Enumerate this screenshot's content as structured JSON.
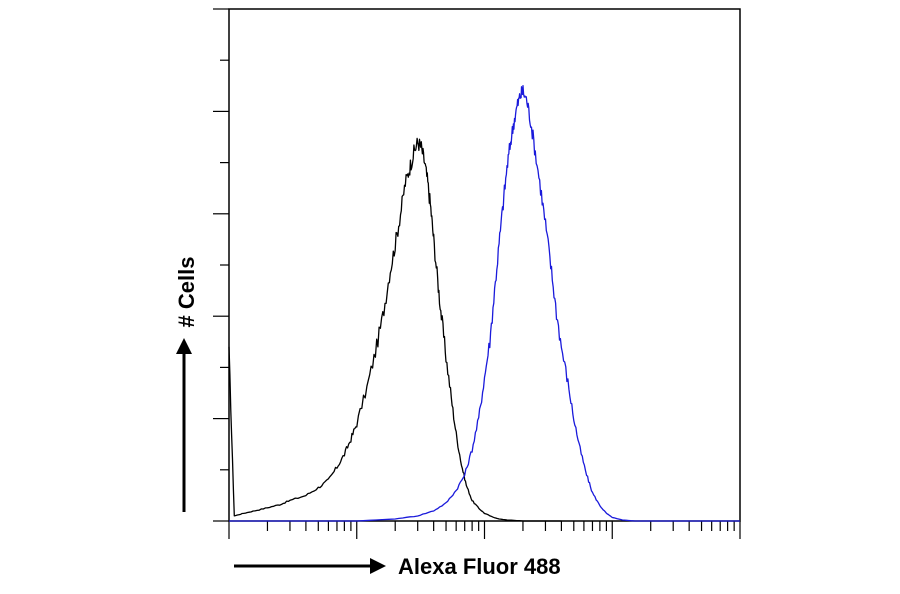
{
  "chart_data": {
    "type": "line",
    "xlabel": "Alexa Fluor 488",
    "ylabel": "# Cells",
    "xscale": "log",
    "xlim": [
      1,
      10000
    ],
    "ylim": [
      0,
      100
    ],
    "grid": false,
    "legend": "none",
    "series": [
      {
        "color": "#000000",
        "x": [
          1,
          1.1,
          1.3,
          1.6,
          2,
          2.5,
          3,
          4,
          5,
          6,
          7,
          8,
          9,
          10,
          12,
          14,
          16,
          18,
          20,
          22,
          24,
          26,
          28,
          30,
          32,
          34,
          36,
          38,
          40,
          43,
          46,
          50,
          55,
          60,
          66,
          72,
          80,
          90,
          100,
          115,
          130,
          150,
          175,
          200,
          250,
          300,
          400
        ],
        "y": [
          33,
          1,
          1.5,
          2,
          2.6,
          3.2,
          4,
          5,
          6.5,
          8,
          10.5,
          13,
          16,
          19,
          26,
          33,
          40,
          48,
          54,
          60,
          66,
          69,
          72,
          74,
          73,
          70,
          66,
          61,
          55,
          47,
          40,
          32,
          24,
          17,
          11,
          7,
          4,
          2.5,
          1.5,
          0.8,
          0.4,
          0.2,
          0.1,
          0,
          0,
          0,
          0
        ]
      },
      {
        "color": "#1a1adb",
        "x": [
          1,
          5,
          10,
          20,
          30,
          40,
          50,
          60,
          70,
          80,
          90,
          100,
          110,
          120,
          130,
          140,
          150,
          160,
          170,
          180,
          190,
          200,
          215,
          230,
          250,
          275,
          300,
          330,
          360,
          400,
          450,
          500,
          560,
          630,
          700,
          800,
          900,
          1000,
          1200,
          1500,
          2000,
          3000,
          10000
        ],
        "y": [
          0,
          0,
          0,
          0.4,
          1,
          2,
          3.5,
          6,
          9,
          14,
          20,
          28,
          35,
          45,
          54,
          62,
          69,
          74,
          78,
          81,
          83,
          84,
          82,
          78,
          72,
          65,
          58,
          50,
          42,
          34,
          27,
          20,
          14,
          9,
          5.5,
          3,
          1.5,
          0.7,
          0.2,
          0,
          0,
          0,
          0
        ]
      }
    ]
  }
}
